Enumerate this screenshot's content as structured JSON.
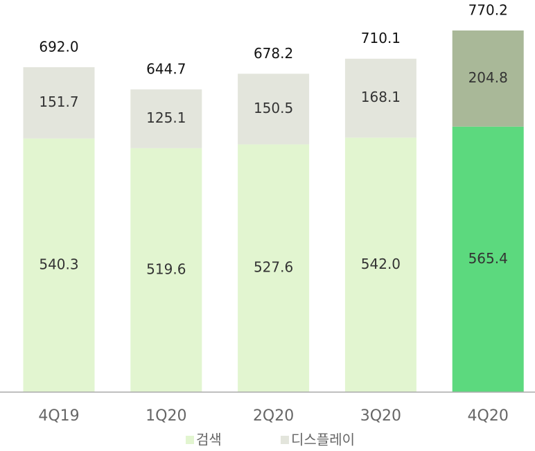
{
  "chart_data": {
    "type": "stacked_bar",
    "categories": [
      "4Q19",
      "1Q20",
      "2Q20",
      "3Q20",
      "4Q20"
    ],
    "series": [
      {
        "name": "검색",
        "color": "#e2f5d0",
        "colors": [
          "#e2f5d0",
          "#e2f5d0",
          "#e2f5d0",
          "#e2f5d0",
          "#5cd97e"
        ],
        "values": [
          540.3,
          519.6,
          527.6,
          542.0,
          565.4
        ],
        "value_labels": [
          "540.3",
          "519.6",
          "527.6",
          "542.0",
          "565.4"
        ]
      },
      {
        "name": "디스플레이",
        "color": "#e3e5dc",
        "colors": [
          "#e3e5dc",
          "#e3e5dc",
          "#e3e5dc",
          "#e3e5dc",
          "#a9b898"
        ],
        "values": [
          151.7,
          125.1,
          150.5,
          168.1,
          204.8
        ],
        "value_labels": [
          "151.7",
          "125.1",
          "150.5",
          "168.1",
          "204.8"
        ]
      }
    ],
    "totals": [
      692.0,
      644.7,
      678.2,
      710.1,
      770.2
    ],
    "total_labels": [
      "692.0",
      "644.7",
      "678.2",
      "710.1",
      "770.2"
    ]
  }
}
